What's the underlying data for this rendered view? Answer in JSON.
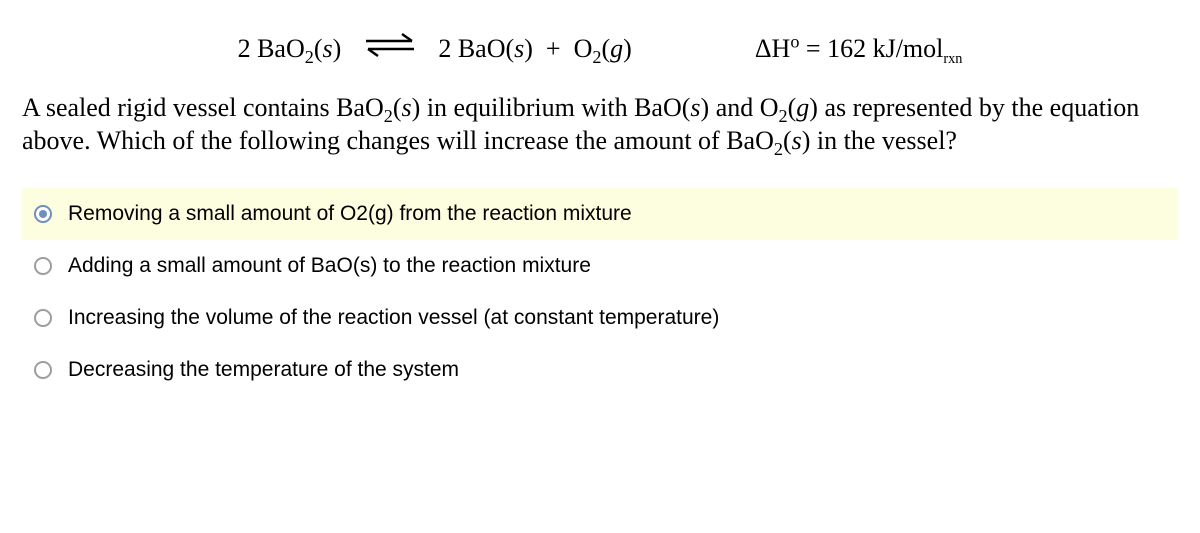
{
  "equation": {
    "left_html": "2 BaO<sub>2</sub>(<span class='ital'>s</span>)",
    "right_html": "2 BaO(<span class='ital'>s</span>)&nbsp; + &nbsp;O<sub>2</sub>(<span class='ital'>g</span>)",
    "delta_h_html": "ΔH<sup>o</sup> = 162 kJ/mol<sub class='sub2'>rxn</sub>"
  },
  "question_html": "A sealed rigid vessel contains BaO<sub>2</sub>(<span class='ital'>s</span>) in equilibrium with BaO(<span class='ital'>s</span>) and O<sub>2</sub>(<span class='ital'>g</span>) as represented by the equation above. Which of the following changes will increase the amount of BaO<sub>2</sub>(<span class='ital'>s</span>) in the vessel?",
  "options": [
    {
      "label": "Removing a small amount of O2(g) from the reaction mixture",
      "selected": true
    },
    {
      "label": "Adding a small amount of BaO(s) to the reaction mixture",
      "selected": false
    },
    {
      "label": "Increasing the volume of the reaction vessel (at constant temperature)",
      "selected": false
    },
    {
      "label": "Decreasing the temperature of the system",
      "selected": false
    }
  ],
  "colors": {
    "selected_bg": "#fdfde0",
    "radio_border": "#9d9d9d",
    "radio_checked": "#6f8fbf",
    "text": "#000000",
    "bg": "#ffffff"
  }
}
